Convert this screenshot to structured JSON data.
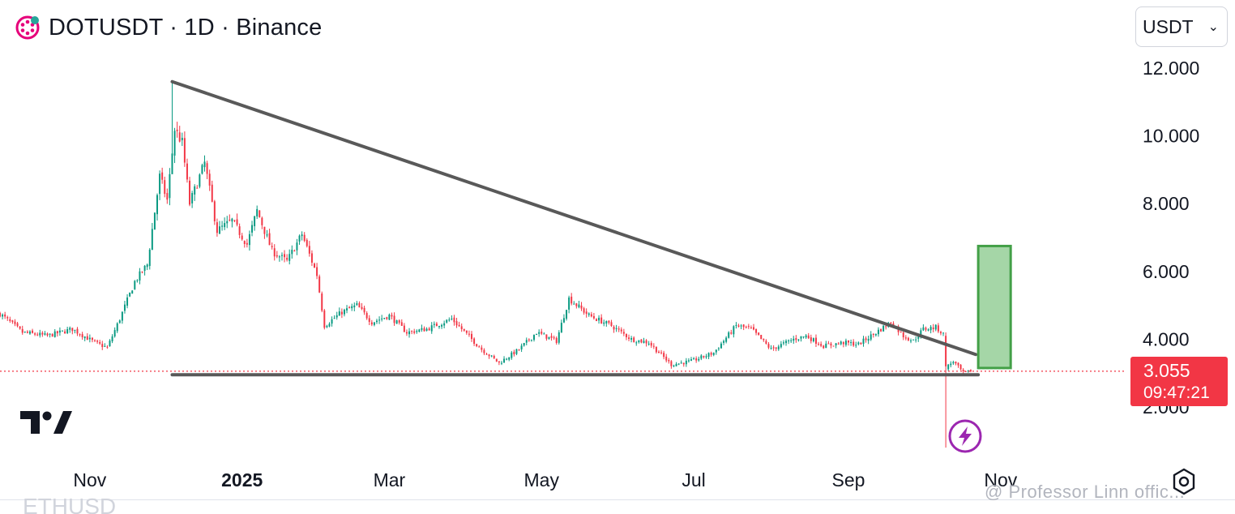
{
  "header": {
    "title": "DOTUSDT · 1D · Binance",
    "currency": "USDT"
  },
  "price_badge": {
    "price": "3.055",
    "countdown": "09:47:21"
  },
  "watermark": "@ Professor Linn offic...",
  "bottom_peek": "ETHUSD",
  "colors": {
    "up": "#089981",
    "down": "#f23645",
    "trendline": "#595959",
    "box_fill": "#a5d6a7",
    "box_border": "#43a047",
    "bolt": "#9c27b0"
  },
  "icons": [
    "polkadot-logo-icon",
    "chevron-down-icon",
    "tradingview-logo-icon",
    "lightning-bolt-icon",
    "settings-gear-icon"
  ],
  "chart_data": {
    "type": "candlestick",
    "title": "DOTUSDT · 1D · Binance",
    "x_ticks": [
      {
        "label": "Nov",
        "date": "2024-11-01"
      },
      {
        "label": "2025",
        "date": "2025-01-01",
        "bold": true
      },
      {
        "label": "Mar",
        "date": "2025-03-01"
      },
      {
        "label": "May",
        "date": "2025-05-01"
      },
      {
        "label": "Jul",
        "date": "2025-07-01"
      },
      {
        "label": "Sep",
        "date": "2025-09-01"
      },
      {
        "label": "Nov",
        "date": "2025-11-01"
      }
    ],
    "y_ticks": [
      2,
      4,
      6,
      8,
      10,
      12
    ],
    "y_tick_labels": [
      "2.000",
      "4.000",
      "6.000",
      "8.000",
      "10.000",
      "12.000"
    ],
    "y_range": [
      0.8,
      13.0
    ],
    "x_range": [
      "2024-09-26",
      "2025-11-28"
    ],
    "anchors": [
      [
        "2024-09-26",
        4.75
      ],
      [
        "2024-10-05",
        4.2
      ],
      [
        "2024-10-15",
        4.1
      ],
      [
        "2024-10-25",
        4.3
      ],
      [
        "2024-11-03",
        3.9
      ],
      [
        "2024-11-08",
        3.75
      ],
      [
        "2024-11-13",
        4.6
      ],
      [
        "2024-11-19",
        5.7
      ],
      [
        "2024-11-24",
        6.2
      ],
      [
        "2024-11-29",
        8.8
      ],
      [
        "2024-12-02",
        8.1
      ],
      [
        "2024-12-05",
        10.2
      ],
      [
        "2024-12-08",
        9.8
      ],
      [
        "2024-12-11",
        8.0
      ],
      [
        "2024-12-17",
        9.2
      ],
      [
        "2024-12-22",
        7.2
      ],
      [
        "2024-12-28",
        7.5
      ],
      [
        "2025-01-03",
        6.8
      ],
      [
        "2025-01-07",
        7.8
      ],
      [
        "2025-01-13",
        6.6
      ],
      [
        "2025-01-19",
        6.3
      ],
      [
        "2025-01-25",
        7.1
      ],
      [
        "2025-01-31",
        5.9
      ],
      [
        "2025-02-03",
        4.4
      ],
      [
        "2025-02-10",
        4.8
      ],
      [
        "2025-02-16",
        5.0
      ],
      [
        "2025-02-22",
        4.5
      ],
      [
        "2025-03-01",
        4.7
      ],
      [
        "2025-03-08",
        4.2
      ],
      [
        "2025-03-16",
        4.3
      ],
      [
        "2025-03-26",
        4.6
      ],
      [
        "2025-04-07",
        3.7
      ],
      [
        "2025-04-14",
        3.3
      ],
      [
        "2025-04-22",
        3.7
      ],
      [
        "2025-04-29",
        4.2
      ],
      [
        "2025-05-07",
        3.95
      ],
      [
        "2025-05-12",
        5.2
      ],
      [
        "2025-05-20",
        4.7
      ],
      [
        "2025-05-29",
        4.4
      ],
      [
        "2025-06-06",
        4.0
      ],
      [
        "2025-06-13",
        3.9
      ],
      [
        "2025-06-22",
        3.25
      ],
      [
        "2025-06-30",
        3.35
      ],
      [
        "2025-07-09",
        3.6
      ],
      [
        "2025-07-18",
        4.4
      ],
      [
        "2025-07-24",
        4.3
      ],
      [
        "2025-08-01",
        3.7
      ],
      [
        "2025-08-10",
        4.0
      ],
      [
        "2025-08-15",
        4.1
      ],
      [
        "2025-08-22",
        3.8
      ],
      [
        "2025-08-30",
        3.9
      ],
      [
        "2025-09-05",
        3.85
      ],
      [
        "2025-09-12",
        4.2
      ],
      [
        "2025-09-18",
        4.5
      ],
      [
        "2025-09-23",
        4.1
      ],
      [
        "2025-09-27",
        3.95
      ],
      [
        "2025-10-01",
        4.3
      ],
      [
        "2025-10-06",
        4.35
      ],
      [
        "2025-10-09",
        4.15
      ],
      [
        "2025-10-10",
        3.15
      ],
      [
        "2025-10-13",
        3.35
      ],
      [
        "2025-10-17",
        3.0
      ],
      [
        "2025-10-20",
        3.055
      ]
    ],
    "notable_candles": [
      {
        "date": "2024-12-04",
        "high": 11.6,
        "low": 9.4
      },
      {
        "date": "2025-10-10",
        "open": 4.1,
        "close": 3.2,
        "high": 4.2,
        "low": 0.8
      }
    ],
    "annotations": {
      "descending_trendline": {
        "from": [
          "2024-12-04",
          11.6
        ],
        "to": [
          "2025-10-22",
          3.55
        ]
      },
      "support_line": {
        "from": [
          "2024-12-04",
          2.95
        ],
        "to": [
          "2025-10-23",
          2.95
        ]
      },
      "target_box": {
        "x_from": "2025-10-23",
        "x_to": "2025-11-05",
        "y_from": 3.15,
        "y_to": 6.75
      },
      "current_price_line": 3.055
    },
    "current_price": 3.055
  }
}
